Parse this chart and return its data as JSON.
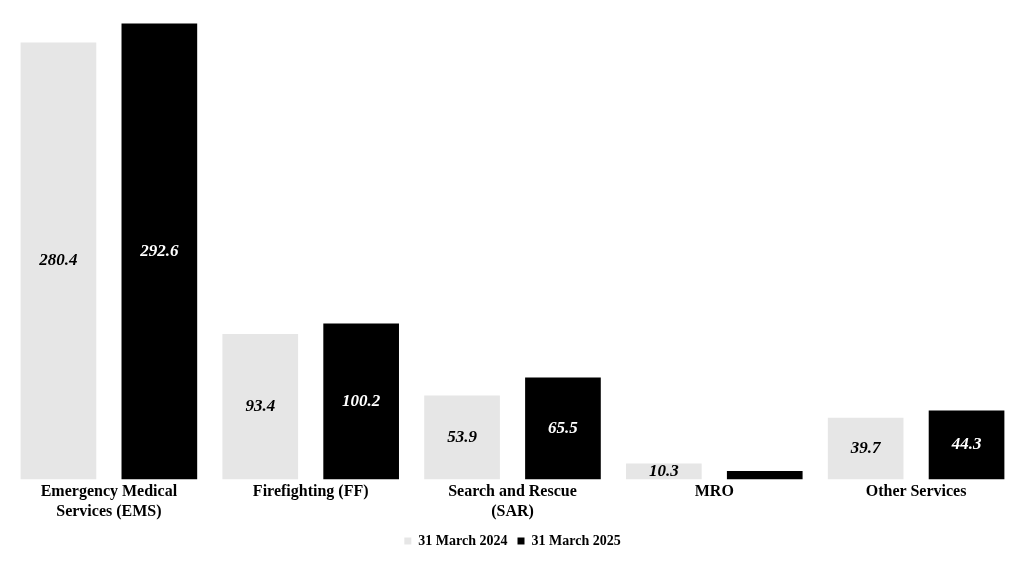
{
  "chart_data": {
    "type": "bar",
    "categories": [
      "Emergency Medical Services (EMS)",
      "Firefighting (FF)",
      "Search and Rescue (SAR)",
      "MRO",
      "Other Services"
    ],
    "series": [
      {
        "name": "31 March 2024",
        "color": "#e6e6e6",
        "values": [
          280.4,
          93.4,
          53.9,
          10.3,
          39.7
        ],
        "value_labels": [
          "280.4",
          "93.4",
          "53.9",
          "10.3",
          "39.7"
        ]
      },
      {
        "name": "31 March 2025",
        "color": "#000000",
        "values": [
          292.6,
          100.2,
          65.5,
          5.5,
          44.3
        ],
        "value_labels": [
          "292.6",
          "100.2",
          "65.5",
          null,
          "44.3"
        ]
      }
    ],
    "legend": "bottom",
    "grid": false
  }
}
